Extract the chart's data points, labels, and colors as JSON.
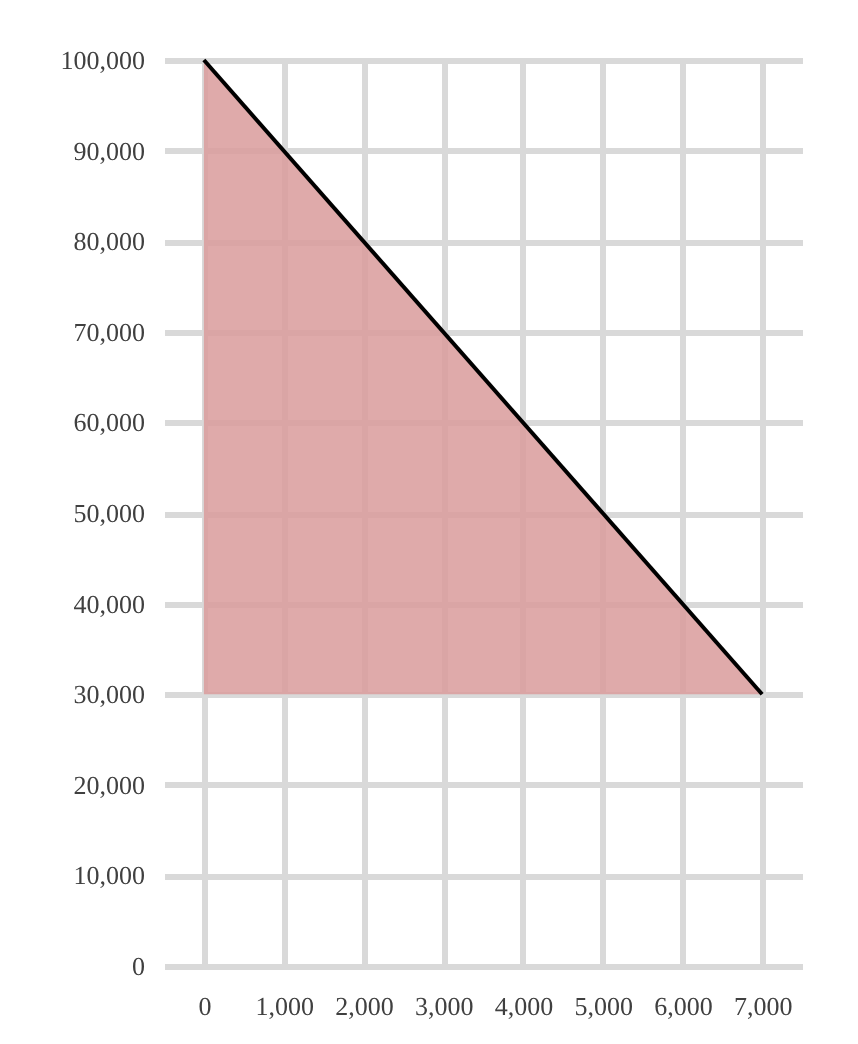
{
  "chart_data": {
    "type": "line",
    "x": [
      0,
      7000
    ],
    "series": [
      {
        "color": "#000000",
        "values": [
          100000,
          30000
        ],
        "lower": [
          30000,
          30000
        ],
        "upper": [
          100000,
          30000
        ]
      }
    ],
    "xlim": [
      -500,
      7500
    ],
    "xticks": [
      0,
      {
        "value": 1000,
        "label": "1,000"
      },
      {
        "value": 2000,
        "label": "2,000"
      },
      {
        "value": 3000,
        "label": "3,000"
      },
      {
        "value": 4000,
        "label": "4,000"
      },
      {
        "value": 5000,
        "label": "5,000"
      },
      {
        "value": 6000,
        "label": "6,000"
      },
      {
        "value": 7000,
        "label": "7,000"
      }
    ],
    "ylim": [
      0,
      100000
    ],
    "yticks": [
      0,
      {
        "value": 10000,
        "label": "10,000"
      },
      {
        "value": 20000,
        "label": "20,000"
      },
      {
        "value": 30000,
        "label": "30,000"
      },
      {
        "value": 40000,
        "label": "40,000"
      },
      {
        "value": 50000,
        "label": "50,000"
      },
      {
        "value": 60000,
        "label": "60,000"
      },
      {
        "value": 70000,
        "label": "70,000"
      },
      {
        "value": 80000,
        "label": "80,000"
      },
      {
        "value": 90000,
        "label": "90,000"
      },
      {
        "value": 100000,
        "label": "100,000"
      }
    ],
    "grid": true,
    "line_style": "solid",
    "marker": "none"
  }
}
